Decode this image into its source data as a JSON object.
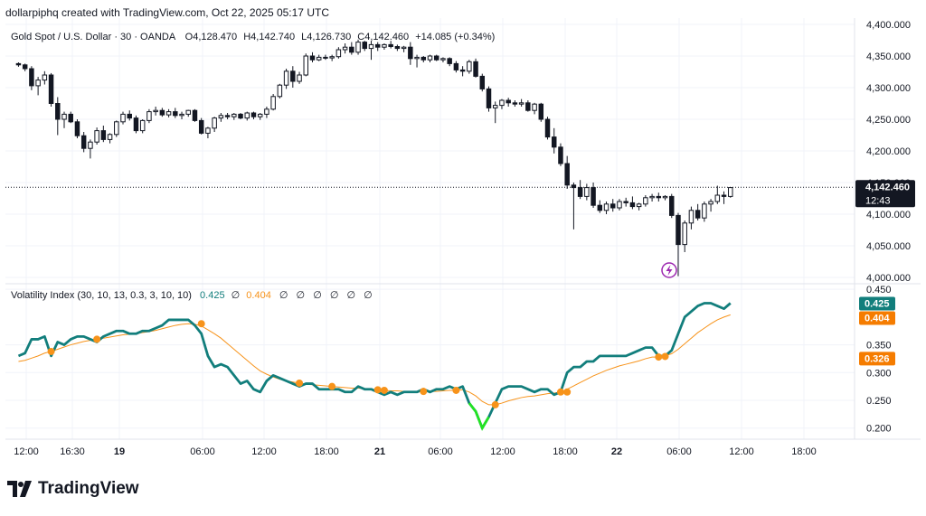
{
  "credit": "dollarpiphq created with TradingView.com, Oct 22, 2025 05:17 UTC",
  "brand": "TradingView",
  "price_pane": {
    "symbol": "Gold Spot / U.S. Dollar · 30 · OANDA",
    "ohlc": {
      "open_label": "O",
      "open": "4,128.470",
      "high_label": "H",
      "high": "4,142.740",
      "low_label": "L",
      "low": "4,126.730",
      "close_label": "C",
      "close": "4,142.460",
      "change": "+14.085 (+0.34%)"
    },
    "last_price": "4,142.460",
    "countdown": "12:43",
    "y_ticks": [
      "4,400.000",
      "4,350.000",
      "4,300.000",
      "4,250.000",
      "4,200.000",
      "4,150.000",
      "4,100.000",
      "4,050.000",
      "4,000.000"
    ]
  },
  "indicator_pane": {
    "name": "Volatility Index (30, 10, 13, 0.3, 3, 10, 10)",
    "value1": "0.425",
    "value2": "0.404",
    "placeholders": [
      "∅",
      "∅",
      "∅",
      "∅",
      "∅",
      "∅",
      "∅"
    ],
    "badges": [
      "0.425",
      "0.404",
      "0.326"
    ],
    "y_ticks": [
      "0.450",
      "0.350",
      "0.300",
      "0.250",
      "0.200"
    ]
  },
  "time_axis": [
    "12:00",
    "16:30",
    "19",
    "06:00",
    "12:00",
    "18:00",
    "21",
    "06:00",
    "12:00",
    "18:00",
    "22",
    "06:00",
    "12:00",
    "18:00"
  ],
  "colors": {
    "candle_up": "#ffffff",
    "candle_down": "#131722",
    "vol_line": "#127e7c",
    "signal_line": "#f7931a",
    "dot": "#f7931a",
    "low_segment": "#22e322",
    "badge_teal": "#127e7c",
    "badge_orange": "#f57c00",
    "lightning": "#9c27b0",
    "grid": "#f0f3fa"
  },
  "chart_data": [
    {
      "type": "candlestick",
      "title": "Gold Spot / U.S. Dollar · 30 · OANDA",
      "ylim": [
        3990,
        4410
      ],
      "x_range": [
        -2,
        128
      ],
      "candles": [
        [
          0,
          4338,
          4340,
          4333,
          4336
        ],
        [
          1,
          4336,
          4338,
          4326,
          4330
        ],
        [
          2,
          4330,
          4334,
          4296,
          4303
        ],
        [
          3,
          4303,
          4317,
          4288,
          4312
        ],
        [
          4,
          4312,
          4326,
          4305,
          4320
        ],
        [
          5,
          4320,
          4323,
          4270,
          4275
        ],
        [
          6,
          4275,
          4285,
          4225,
          4250
        ],
        [
          7,
          4250,
          4262,
          4236,
          4258
        ],
        [
          8,
          4258,
          4262,
          4244,
          4246
        ],
        [
          9,
          4246,
          4250,
          4220,
          4224
        ],
        [
          10,
          4224,
          4230,
          4198,
          4204
        ],
        [
          11,
          4204,
          4218,
          4188,
          4214
        ],
        [
          12,
          4214,
          4237,
          4210,
          4232
        ],
        [
          13,
          4232,
          4240,
          4214,
          4218
        ],
        [
          14,
          4218,
          4228,
          4212,
          4226
        ],
        [
          15,
          4226,
          4248,
          4222,
          4246
        ],
        [
          16,
          4246,
          4262,
          4242,
          4258
        ],
        [
          17,
          4258,
          4264,
          4248,
          4252
        ],
        [
          18,
          4252,
          4256,
          4228,
          4232
        ],
        [
          19,
          4232,
          4250,
          4228,
          4248
        ],
        [
          20,
          4248,
          4266,
          4244,
          4262
        ],
        [
          21,
          4262,
          4270,
          4256,
          4264
        ],
        [
          22,
          4264,
          4268,
          4254,
          4257
        ],
        [
          23,
          4257,
          4266,
          4253,
          4262
        ],
        [
          24,
          4262,
          4268,
          4252,
          4256
        ],
        [
          25,
          4256,
          4262,
          4250,
          4258
        ],
        [
          26,
          4258,
          4265,
          4254,
          4264
        ],
        [
          27,
          4264,
          4266,
          4246,
          4248
        ],
        [
          28,
          4248,
          4252,
          4226,
          4228
        ],
        [
          29,
          4228,
          4238,
          4220,
          4236
        ],
        [
          30,
          4236,
          4254,
          4230,
          4252
        ],
        [
          31,
          4252,
          4260,
          4246,
          4256
        ],
        [
          32,
          4256,
          4260,
          4250,
          4254
        ],
        [
          33,
          4254,
          4260,
          4249,
          4258
        ],
        [
          34,
          4258,
          4260,
          4250,
          4252
        ],
        [
          35,
          4252,
          4262,
          4248,
          4260
        ],
        [
          36,
          4260,
          4262,
          4250,
          4254
        ],
        [
          37,
          4254,
          4260,
          4249,
          4258
        ],
        [
          38,
          4258,
          4270,
          4252,
          4266
        ],
        [
          39,
          4266,
          4290,
          4264,
          4286
        ],
        [
          40,
          4286,
          4306,
          4283,
          4304
        ],
        [
          41,
          4304,
          4330,
          4298,
          4326
        ],
        [
          42,
          4326,
          4334,
          4300,
          4310
        ],
        [
          43,
          4310,
          4325,
          4306,
          4320
        ],
        [
          44,
          4320,
          4354,
          4318,
          4350
        ],
        [
          45,
          4350,
          4356,
          4340,
          4344
        ],
        [
          46,
          4344,
          4352,
          4342,
          4348
        ],
        [
          47,
          4348,
          4352,
          4344,
          4347
        ],
        [
          48,
          4347,
          4352,
          4342,
          4349
        ],
        [
          49,
          4349,
          4364,
          4346,
          4360
        ],
        [
          50,
          4360,
          4370,
          4354,
          4364
        ],
        [
          51,
          4364,
          4372,
          4352,
          4356
        ],
        [
          52,
          4356,
          4376,
          4352,
          4372
        ],
        [
          53,
          4372,
          4374,
          4358,
          4362
        ],
        [
          54,
          4362,
          4374,
          4344,
          4368
        ],
        [
          55,
          4368,
          4372,
          4358,
          4364
        ],
        [
          56,
          4364,
          4370,
          4360,
          4368
        ],
        [
          57,
          4368,
          4374,
          4362,
          4365
        ],
        [
          58,
          4365,
          4368,
          4358,
          4362
        ],
        [
          59,
          4362,
          4366,
          4356,
          4364
        ],
        [
          60,
          4364,
          4372,
          4336,
          4346
        ],
        [
          61,
          4346,
          4352,
          4332,
          4348
        ],
        [
          62,
          4348,
          4350,
          4340,
          4344
        ],
        [
          63,
          4344,
          4352,
          4340,
          4350
        ],
        [
          64,
          4350,
          4352,
          4342,
          4344
        ],
        [
          65,
          4344,
          4348,
          4340,
          4346
        ],
        [
          66,
          4346,
          4348,
          4334,
          4338
        ],
        [
          67,
          4338,
          4342,
          4324,
          4328
        ],
        [
          68,
          4328,
          4334,
          4318,
          4326
        ],
        [
          69,
          4326,
          4344,
          4322,
          4341
        ],
        [
          70,
          4341,
          4346,
          4316,
          4318
        ],
        [
          71,
          4318,
          4322,
          4294,
          4298
        ],
        [
          72,
          4298,
          4302,
          4262,
          4268
        ],
        [
          73,
          4268,
          4278,
          4244,
          4272
        ],
        [
          74,
          4272,
          4282,
          4266,
          4280
        ],
        [
          75,
          4280,
          4284,
          4270,
          4276
        ],
        [
          76,
          4276,
          4280,
          4270,
          4274
        ],
        [
          77,
          4274,
          4282,
          4270,
          4276
        ],
        [
          78,
          4276,
          4280,
          4262,
          4264
        ],
        [
          79,
          4264,
          4276,
          4258,
          4274
        ],
        [
          80,
          4274,
          4276,
          4246,
          4250
        ],
        [
          81,
          4250,
          4254,
          4218,
          4222
        ],
        [
          82,
          4222,
          4236,
          4196,
          4206
        ],
        [
          83,
          4206,
          4212,
          4176,
          4180
        ],
        [
          84,
          4180,
          4192,
          4140,
          4146
        ],
        [
          85,
          4146,
          4150,
          4076,
          4142
        ],
        [
          86,
          4142,
          4154,
          4124,
          4128
        ],
        [
          87,
          4128,
          4148,
          4122,
          4142
        ],
        [
          88,
          4142,
          4150,
          4110,
          4114
        ],
        [
          89,
          4114,
          4122,
          4102,
          4106
        ],
        [
          90,
          4106,
          4120,
          4100,
          4116
        ],
        [
          91,
          4116,
          4124,
          4104,
          4110
        ],
        [
          92,
          4110,
          4124,
          4106,
          4120
        ],
        [
          93,
          4120,
          4126,
          4112,
          4118
        ],
        [
          94,
          4118,
          4128,
          4108,
          4112
        ],
        [
          95,
          4112,
          4118,
          4106,
          4116
        ],
        [
          96,
          4116,
          4130,
          4112,
          4126
        ],
        [
          97,
          4126,
          4132,
          4120,
          4128
        ],
        [
          98,
          4128,
          4134,
          4120,
          4126
        ],
        [
          99,
          4126,
          4130,
          4122,
          4128
        ],
        [
          100,
          4128,
          4132,
          4094,
          4098
        ],
        [
          101,
          4098,
          4102,
          4002,
          4052
        ],
        [
          102,
          4052,
          4090,
          4040,
          4086
        ],
        [
          103,
          4086,
          4112,
          4076,
          4106
        ],
        [
          104,
          4106,
          4116,
          4090,
          4094
        ],
        [
          105,
          4094,
          4120,
          4088,
          4116
        ],
        [
          106,
          4116,
          4124,
          4104,
          4120
        ],
        [
          107,
          4120,
          4145,
          4116,
          4130
        ],
        [
          108,
          4130,
          4136,
          4116,
          4128
        ],
        [
          109,
          4128,
          4142,
          4126,
          4142
        ]
      ]
    },
    {
      "type": "line",
      "title": "Volatility Index (30, 10, 13, 0.3, 3, 10, 10)",
      "ylim": [
        0.18,
        0.46
      ],
      "series": [
        {
          "values": [
            0.33,
            0.335,
            0.36,
            0.36,
            0.365,
            0.33,
            0.355,
            0.35,
            0.36,
            0.365,
            0.365,
            0.36,
            0.355,
            0.365,
            0.37,
            0.375,
            0.375,
            0.37,
            0.37,
            0.375,
            0.375,
            0.38,
            0.385,
            0.395,
            0.395,
            0.395,
            0.395,
            0.385,
            0.37,
            0.33,
            0.31,
            0.315,
            0.31,
            0.295,
            0.28,
            0.285,
            0.27,
            0.265,
            0.285,
            0.295,
            0.29,
            0.285,
            0.28,
            0.275,
            0.28,
            0.28,
            0.27,
            0.27,
            0.27,
            0.27,
            0.265,
            0.265,
            0.275,
            0.27,
            0.27,
            0.265,
            0.26,
            0.265,
            0.26,
            0.265,
            0.265,
            0.265,
            0.27,
            0.265,
            0.27,
            0.27,
            0.275,
            0.27,
            0.275,
            0.245,
            0.23,
            0.2,
            0.22,
            0.245,
            0.27,
            0.275,
            0.275,
            0.275,
            0.27,
            0.265,
            0.27,
            0.27,
            0.26,
            0.265,
            0.3,
            0.31,
            0.31,
            0.32,
            0.32,
            0.33,
            0.33,
            0.33,
            0.33,
            0.33,
            0.335,
            0.34,
            0.345,
            0.345,
            0.33,
            0.33,
            0.34,
            0.37,
            0.4,
            0.41,
            0.42,
            0.425,
            0.425,
            0.42,
            0.415,
            0.425
          ]
        },
        {
          "values": [
            0.32,
            0.322,
            0.326,
            0.33,
            0.335,
            0.338,
            0.342,
            0.346,
            0.35,
            0.353,
            0.356,
            0.358,
            0.36,
            0.362,
            0.364,
            0.366,
            0.368,
            0.369,
            0.37,
            0.372,
            0.374,
            0.376,
            0.379,
            0.382,
            0.385,
            0.387,
            0.388,
            0.387,
            0.384,
            0.377,
            0.37,
            0.362,
            0.352,
            0.342,
            0.332,
            0.322,
            0.312,
            0.303,
            0.297,
            0.292,
            0.288,
            0.285,
            0.283,
            0.281,
            0.279,
            0.278,
            0.277,
            0.276,
            0.275,
            0.274,
            0.273,
            0.272,
            0.272,
            0.271,
            0.27,
            0.269,
            0.268,
            0.267,
            0.267,
            0.266,
            0.266,
            0.266,
            0.266,
            0.266,
            0.266,
            0.267,
            0.268,
            0.268,
            0.269,
            0.265,
            0.258,
            0.248,
            0.242,
            0.242,
            0.245,
            0.249,
            0.252,
            0.255,
            0.257,
            0.258,
            0.26,
            0.262,
            0.263,
            0.265,
            0.27,
            0.276,
            0.282,
            0.288,
            0.294,
            0.299,
            0.304,
            0.308,
            0.312,
            0.315,
            0.318,
            0.321,
            0.325,
            0.328,
            0.328,
            0.33,
            0.334,
            0.342,
            0.352,
            0.362,
            0.372,
            0.38,
            0.388,
            0.395,
            0.4,
            0.404
          ]
        }
      ],
      "dots": [
        [
          5,
          0.338
        ],
        [
          12,
          0.36
        ],
        [
          28,
          0.388
        ],
        [
          43,
          0.281
        ],
        [
          48,
          0.275
        ],
        [
          55,
          0.269
        ],
        [
          56,
          0.268
        ],
        [
          62,
          0.266
        ],
        [
          67,
          0.268
        ],
        [
          73,
          0.242
        ],
        [
          83,
          0.265
        ],
        [
          84,
          0.265
        ],
        [
          98,
          0.328
        ],
        [
          99,
          0.329
        ]
      ],
      "low_segment": [
        69,
        72
      ]
    }
  ]
}
